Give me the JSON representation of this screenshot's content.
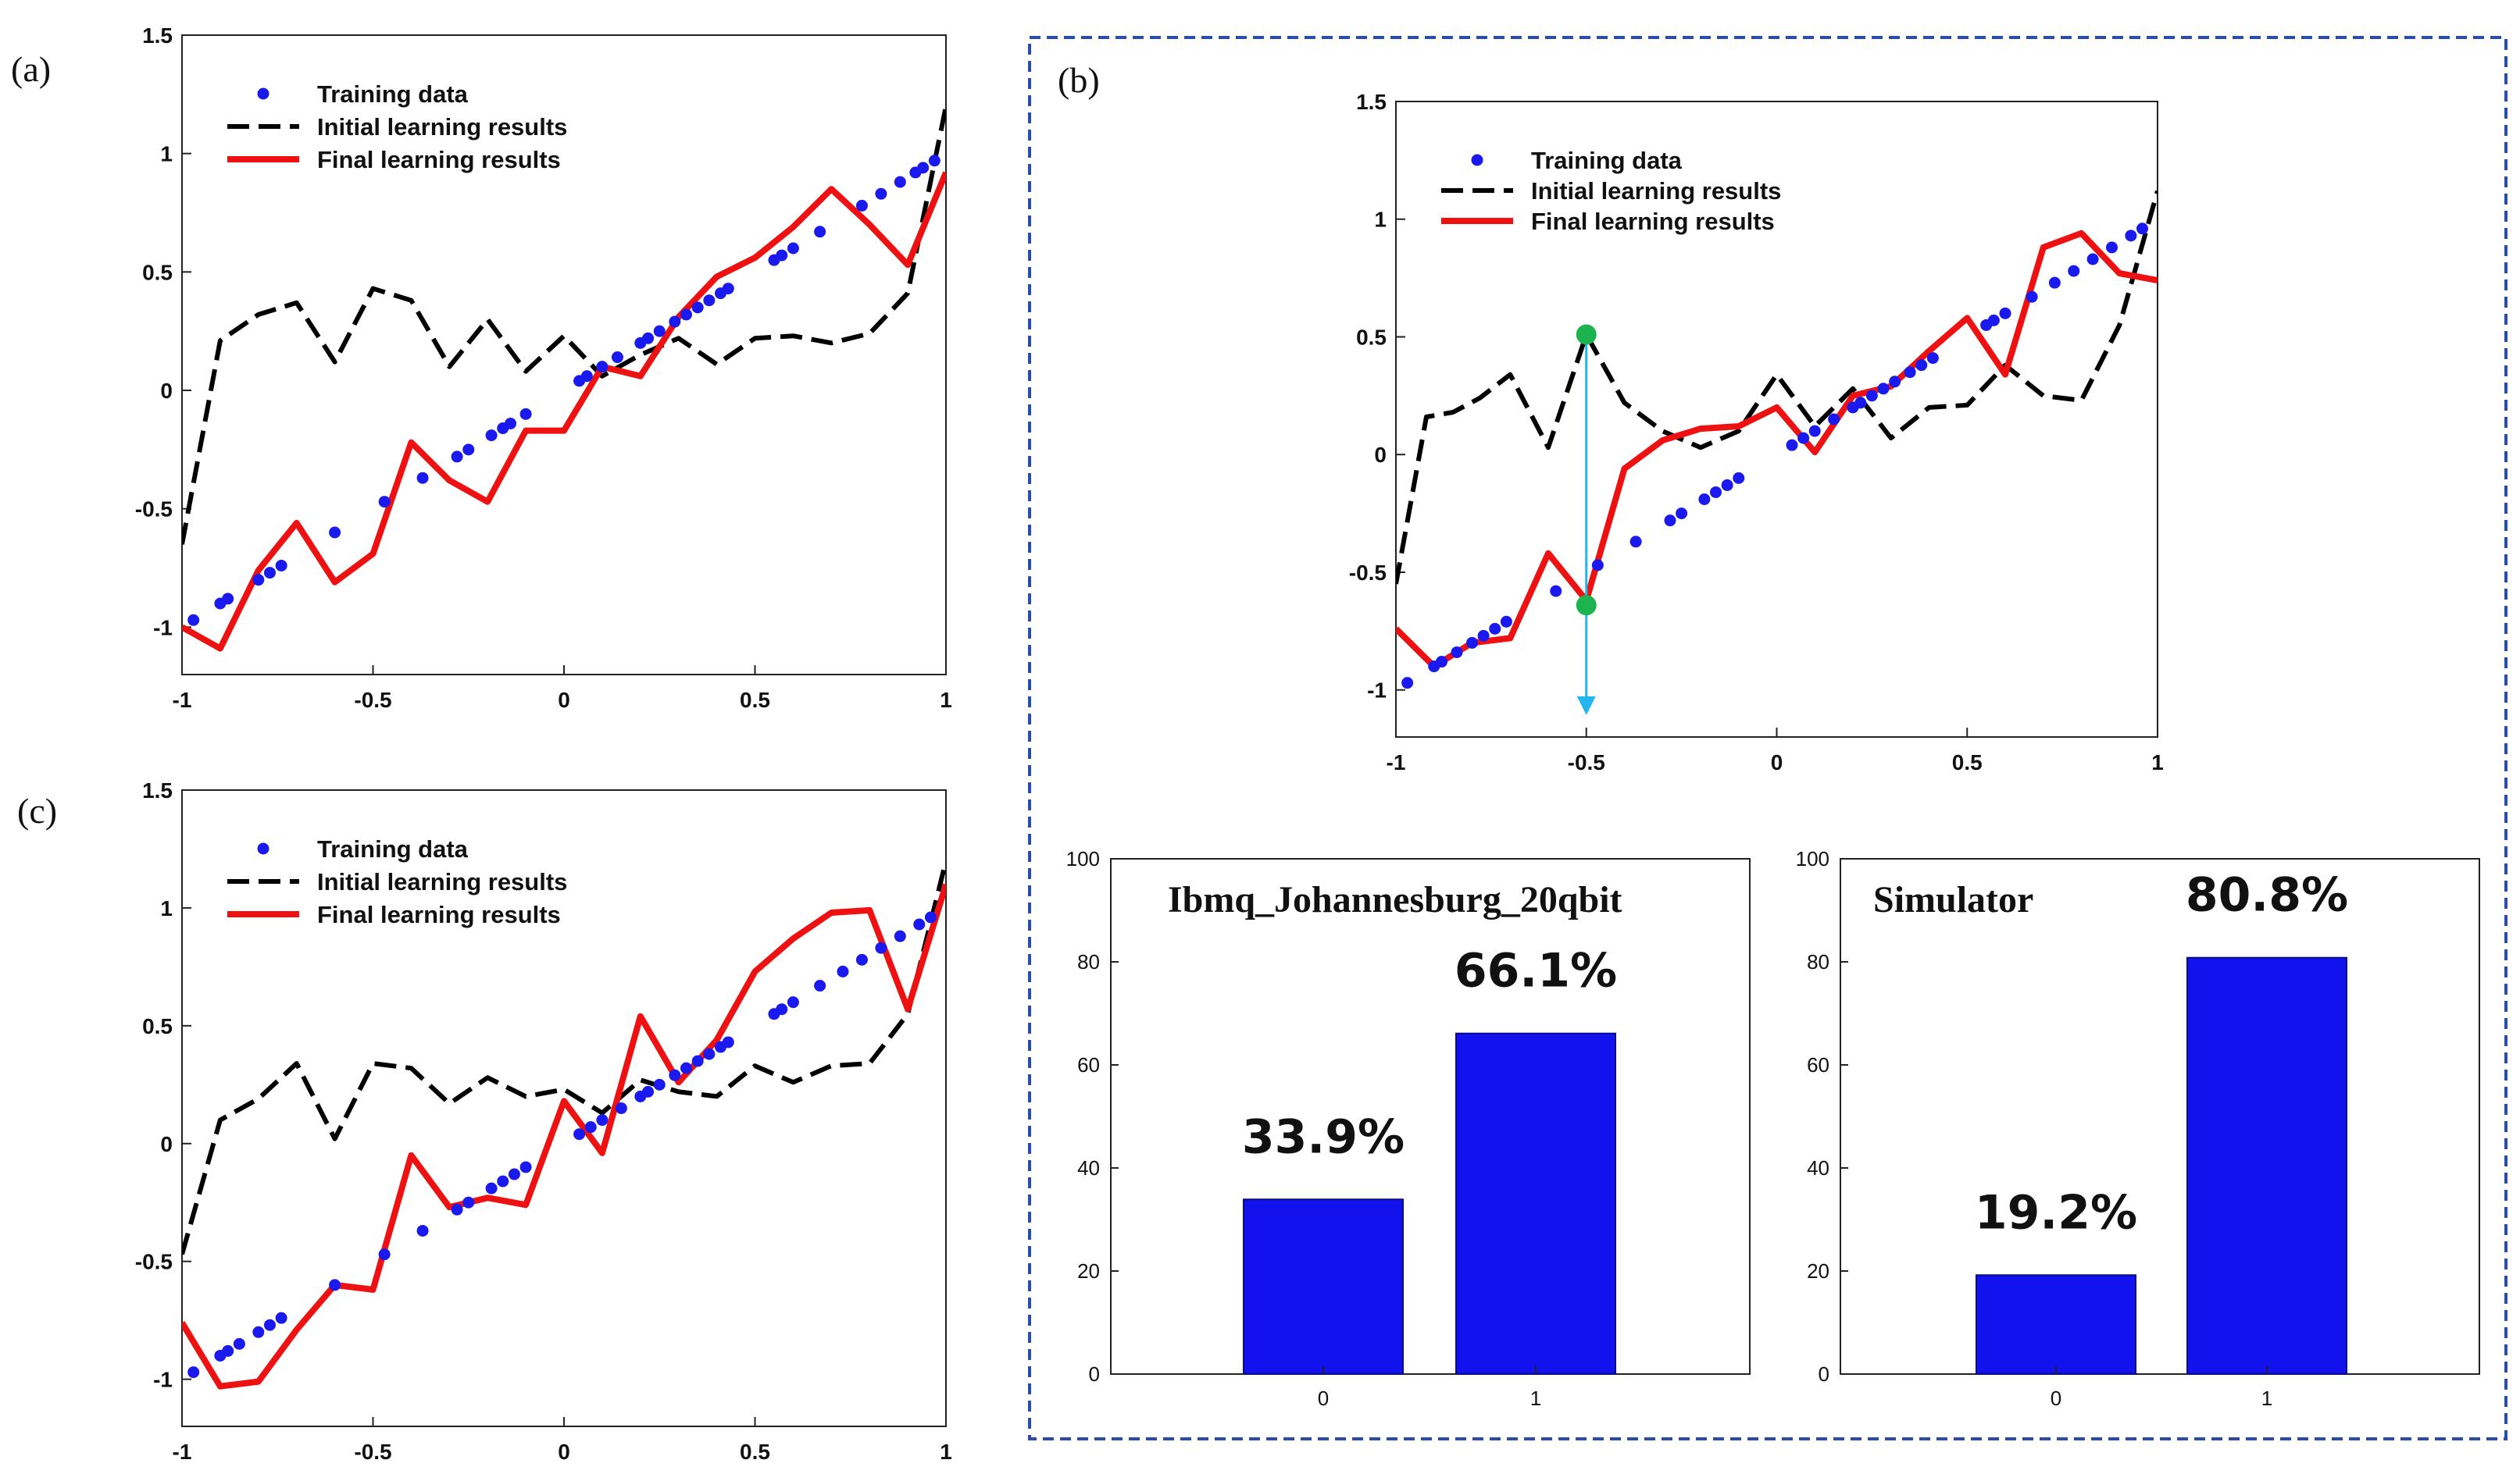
{
  "panels": {
    "a": {
      "label": "(a)"
    },
    "b": {
      "label": "(b)"
    },
    "c": {
      "label": "(c)"
    }
  },
  "colors": {
    "training": "#1a1aee",
    "initial": "#000000",
    "final": "#ee1111",
    "bar": "#1212ee",
    "arrow": "#22b5ee",
    "marker": "#1db34f",
    "dashed_border": "#2a4da8"
  },
  "chart_data": [
    {
      "id": "a",
      "type": "line",
      "xlim": [
        -1,
        1
      ],
      "ylim": [
        -1.2,
        1.5
      ],
      "xticks": [
        -1,
        -0.5,
        0,
        0.5,
        1
      ],
      "yticks": [
        -1,
        -0.5,
        0,
        0.5,
        1,
        1.5
      ],
      "xtick_labels": [
        "-1",
        "-0.5",
        "0",
        "0.5",
        "1"
      ],
      "ytick_labels": [
        "-1",
        "-0.5",
        "0",
        "0.5",
        "1",
        "1.5"
      ],
      "legend": {
        "placement": "top-left",
        "entries": [
          "Training data",
          "Initial learning results",
          "Final learning results"
        ]
      },
      "series": [
        {
          "name": "Training data",
          "style": "scatter",
          "x": [
            -0.97,
            -0.9,
            -0.88,
            -0.8,
            -0.77,
            -0.74,
            -0.6,
            -0.47,
            -0.37,
            -0.28,
            -0.25,
            -0.19,
            -0.16,
            -0.14,
            -0.1,
            0.04,
            0.06,
            0.1,
            0.14,
            0.2,
            0.22,
            0.25,
            0.29,
            0.32,
            0.35,
            0.38,
            0.41,
            0.43,
            0.55,
            0.57,
            0.6,
            0.67,
            0.78,
            0.83,
            0.88,
            0.92,
            0.94,
            0.97
          ],
          "y": [
            -0.97,
            -0.9,
            -0.88,
            -0.8,
            -0.77,
            -0.74,
            -0.6,
            -0.47,
            -0.37,
            -0.28,
            -0.25,
            -0.19,
            -0.16,
            -0.14,
            -0.1,
            0.04,
            0.06,
            0.1,
            0.14,
            0.2,
            0.22,
            0.25,
            0.29,
            0.32,
            0.35,
            0.38,
            0.41,
            0.43,
            0.55,
            0.57,
            0.6,
            0.67,
            0.78,
            0.83,
            0.88,
            0.92,
            0.94,
            0.97
          ]
        },
        {
          "name": "Initial learning results",
          "style": "dashed",
          "x": [
            -1,
            -0.9,
            -0.8,
            -0.7,
            -0.6,
            -0.5,
            -0.4,
            -0.3,
            -0.2,
            -0.1,
            0,
            0.1,
            0.2,
            0.3,
            0.4,
            0.5,
            0.6,
            0.7,
            0.8,
            0.9,
            1
          ],
          "y": [
            -0.65,
            0.21,
            0.32,
            0.37,
            0.12,
            0.43,
            0.38,
            0.1,
            0.3,
            0.08,
            0.23,
            0.06,
            0.15,
            0.22,
            0.11,
            0.22,
            0.23,
            0.2,
            0.24,
            0.41,
            1.2
          ]
        },
        {
          "name": "Final learning results",
          "style": "solid",
          "x": [
            -1,
            -0.9,
            -0.8,
            -0.7,
            -0.6,
            -0.5,
            -0.4,
            -0.3,
            -0.2,
            -0.1,
            0,
            0.1,
            0.2,
            0.3,
            0.4,
            0.5,
            0.6,
            0.7,
            0.8,
            0.9,
            1
          ],
          "y": [
            -1.0,
            -1.09,
            -0.76,
            -0.56,
            -0.81,
            -0.69,
            -0.22,
            -0.38,
            -0.47,
            -0.17,
            -0.17,
            0.1,
            0.06,
            0.31,
            0.48,
            0.56,
            0.69,
            0.85,
            0.7,
            0.53,
            0.92
          ]
        }
      ]
    },
    {
      "id": "b",
      "type": "line",
      "xlim": [
        -1,
        1
      ],
      "ylim": [
        -1.2,
        1.5
      ],
      "xticks": [
        -1,
        -0.5,
        0,
        0.5,
        1
      ],
      "yticks": [
        -1,
        -0.5,
        0,
        0.5,
        1,
        1.5
      ],
      "xtick_labels": [
        "-1",
        "-0.5",
        "0",
        "0.5",
        "1"
      ],
      "ytick_labels": [
        "-1",
        "-0.5",
        "0",
        "0.5",
        "1",
        "1.5"
      ],
      "legend": {
        "placement": "top-left",
        "entries": [
          "Training data",
          "Initial learning results",
          "Final learning results"
        ]
      },
      "series": [
        {
          "name": "Training data",
          "style": "scatter",
          "x": [
            -0.97,
            -0.9,
            -0.88,
            -0.84,
            -0.8,
            -0.77,
            -0.74,
            -0.71,
            -0.58,
            -0.47,
            -0.37,
            -0.28,
            -0.25,
            -0.19,
            -0.16,
            -0.13,
            -0.1,
            0.04,
            0.07,
            0.1,
            0.15,
            0.2,
            0.22,
            0.25,
            0.28,
            0.31,
            0.35,
            0.38,
            0.41,
            0.55,
            0.57,
            0.6,
            0.67,
            0.73,
            0.78,
            0.83,
            0.88,
            0.93,
            0.96
          ],
          "y": [
            -0.97,
            -0.9,
            -0.88,
            -0.84,
            -0.8,
            -0.77,
            -0.74,
            -0.71,
            -0.58,
            -0.47,
            -0.37,
            -0.28,
            -0.25,
            -0.19,
            -0.16,
            -0.13,
            -0.1,
            0.04,
            0.07,
            0.1,
            0.15,
            0.2,
            0.22,
            0.25,
            0.28,
            0.31,
            0.35,
            0.38,
            0.41,
            0.55,
            0.57,
            0.6,
            0.67,
            0.73,
            0.78,
            0.83,
            0.88,
            0.93,
            0.96
          ]
        },
        {
          "name": "Initial learning results",
          "style": "dashed",
          "x": [
            -1,
            -0.92,
            -0.85,
            -0.78,
            -0.7,
            -0.6,
            -0.5,
            -0.4,
            -0.3,
            -0.2,
            -0.1,
            0,
            0.1,
            0.2,
            0.3,
            0.4,
            0.5,
            0.6,
            0.7,
            0.8,
            0.9,
            1
          ],
          "y": [
            -0.55,
            0.16,
            0.18,
            0.24,
            0.34,
            0.03,
            0.51,
            0.22,
            0.1,
            0.03,
            0.1,
            0.34,
            0.12,
            0.28,
            0.07,
            0.2,
            0.21,
            0.38,
            0.25,
            0.23,
            0.55,
            1.12
          ]
        },
        {
          "name": "Final learning results",
          "style": "solid",
          "x": [
            -1,
            -0.9,
            -0.8,
            -0.7,
            -0.6,
            -0.5,
            -0.4,
            -0.3,
            -0.2,
            -0.1,
            0,
            0.1,
            0.2,
            0.3,
            0.4,
            0.5,
            0.6,
            0.7,
            0.8,
            0.9,
            1
          ],
          "y": [
            -0.74,
            -0.9,
            -0.8,
            -0.78,
            -0.42,
            -0.62,
            -0.06,
            0.06,
            0.11,
            0.12,
            0.2,
            0.01,
            0.25,
            0.29,
            0.44,
            0.58,
            0.34,
            0.88,
            0.94,
            0.77,
            0.74
          ]
        }
      ],
      "annotation": {
        "x": -0.5,
        "y_top": 0.51,
        "y_bottom": -0.64,
        "arrow_to": -1.1
      }
    },
    {
      "id": "c",
      "type": "line",
      "xlim": [
        -1,
        1
      ],
      "ylim": [
        -1.2,
        1.5
      ],
      "xticks": [
        -1,
        -0.5,
        0,
        0.5,
        1
      ],
      "yticks": [
        -1,
        -0.5,
        0,
        0.5,
        1,
        1.5
      ],
      "xtick_labels": [
        "-1",
        "-0.5",
        "0",
        "0.5",
        "1"
      ],
      "ytick_labels": [
        "-1",
        "-0.5",
        "0",
        "0.5",
        "1",
        "1.5"
      ],
      "legend": {
        "placement": "top-left",
        "entries": [
          "Training data",
          "Initial learning results",
          "Final learning results"
        ]
      },
      "series": [
        {
          "name": "Training data",
          "style": "scatter",
          "x": [
            -0.97,
            -0.9,
            -0.88,
            -0.85,
            -0.8,
            -0.77,
            -0.74,
            -0.6,
            -0.47,
            -0.37,
            -0.28,
            -0.25,
            -0.19,
            -0.16,
            -0.13,
            -0.1,
            0.04,
            0.07,
            0.1,
            0.15,
            0.2,
            0.22,
            0.25,
            0.29,
            0.32,
            0.35,
            0.38,
            0.41,
            0.43,
            0.55,
            0.57,
            0.6,
            0.67,
            0.73,
            0.78,
            0.83,
            0.88,
            0.93,
            0.96
          ],
          "y": [
            -0.97,
            -0.9,
            -0.88,
            -0.85,
            -0.8,
            -0.77,
            -0.74,
            -0.6,
            -0.47,
            -0.37,
            -0.28,
            -0.25,
            -0.19,
            -0.16,
            -0.13,
            -0.1,
            0.04,
            0.07,
            0.1,
            0.15,
            0.2,
            0.22,
            0.25,
            0.29,
            0.32,
            0.35,
            0.38,
            0.41,
            0.43,
            0.55,
            0.57,
            0.6,
            0.67,
            0.73,
            0.78,
            0.83,
            0.88,
            0.93,
            0.96
          ]
        },
        {
          "name": "Initial learning results",
          "style": "dashed",
          "x": [
            -1,
            -0.9,
            -0.8,
            -0.7,
            -0.6,
            -0.5,
            -0.4,
            -0.3,
            -0.2,
            -0.1,
            0,
            0.1,
            0.2,
            0.3,
            0.4,
            0.5,
            0.6,
            0.7,
            0.8,
            0.9,
            1
          ],
          "y": [
            -0.47,
            0.1,
            0.19,
            0.34,
            0.02,
            0.34,
            0.32,
            0.17,
            0.28,
            0.2,
            0.23,
            0.13,
            0.27,
            0.22,
            0.2,
            0.33,
            0.26,
            0.33,
            0.34,
            0.55,
            1.2
          ]
        },
        {
          "name": "Final learning results",
          "style": "solid",
          "x": [
            -1,
            -0.9,
            -0.8,
            -0.7,
            -0.6,
            -0.5,
            -0.4,
            -0.3,
            -0.2,
            -0.1,
            0,
            0.1,
            0.2,
            0.3,
            0.4,
            0.5,
            0.6,
            0.7,
            0.8,
            0.9,
            1
          ],
          "y": [
            -0.76,
            -1.03,
            -1.01,
            -0.79,
            -0.6,
            -0.62,
            -0.05,
            -0.27,
            -0.23,
            -0.26,
            0.18,
            -0.04,
            0.54,
            0.26,
            0.44,
            0.73,
            0.87,
            0.98,
            0.99,
            0.57,
            1.1
          ]
        }
      ]
    },
    {
      "id": "b-bar-left",
      "type": "bar",
      "title": "Ibmq_Johannesburg_20qbit",
      "categories": [
        "0",
        "1"
      ],
      "values": [
        33.9,
        66.1
      ],
      "data_labels": [
        "33.9%",
        "66.1%"
      ],
      "ylim": [
        0,
        100
      ],
      "yticks": [
        0,
        20,
        40,
        60,
        80,
        100
      ],
      "ytick_labels": [
        "0",
        "20",
        "40",
        "60",
        "80",
        "100"
      ]
    },
    {
      "id": "b-bar-right",
      "type": "bar",
      "title": "Simulator",
      "categories": [
        "0",
        "1"
      ],
      "values": [
        19.2,
        80.8
      ],
      "data_labels": [
        "19.2%",
        "80.8%"
      ],
      "ylim": [
        0,
        100
      ],
      "yticks": [
        0,
        20,
        40,
        60,
        80,
        100
      ],
      "ytick_labels": [
        "0",
        "20",
        "40",
        "60",
        "80",
        "100"
      ]
    }
  ]
}
